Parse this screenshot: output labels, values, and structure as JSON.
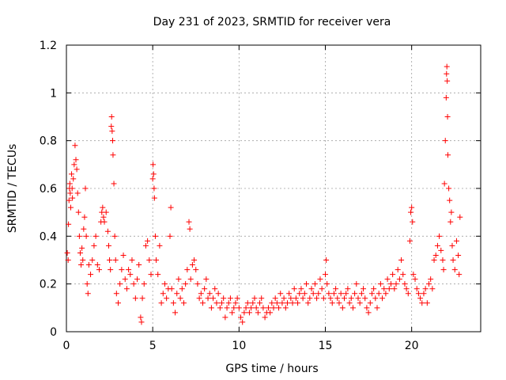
{
  "chart_data": {
    "type": "scatter",
    "title": "Day 231 of 2023, SRMTID for receiver vera",
    "xlabel": "GPS time / hours",
    "ylabel": "SRMTID / TECUs",
    "xlim": [
      0,
      24
    ],
    "ylim": [
      0,
      1.2
    ],
    "xticks": [
      0,
      5,
      10,
      15,
      20
    ],
    "yticks": [
      0,
      0.2,
      0.4,
      0.6,
      0.8,
      1,
      1.2
    ],
    "xtick_labels": [
      "0",
      "5",
      "10",
      "15",
      "20"
    ],
    "ytick_labels": [
      "0",
      "0.2",
      "0.4",
      "0.6",
      "0.8",
      "1",
      "1.2"
    ],
    "grid": true,
    "marker": "+",
    "series": [
      {
        "name": "SRMTID",
        "color": "#ff0000",
        "points": [
          [
            0.05,
            0.33
          ],
          [
            0.1,
            0.3
          ],
          [
            0.12,
            0.45
          ],
          [
            0.15,
            0.55
          ],
          [
            0.18,
            0.6
          ],
          [
            0.2,
            0.62
          ],
          [
            0.22,
            0.58
          ],
          [
            0.25,
            0.52
          ],
          [
            0.3,
            0.66
          ],
          [
            0.33,
            0.6
          ],
          [
            0.35,
            0.56
          ],
          [
            0.4,
            0.64
          ],
          [
            0.45,
            0.7
          ],
          [
            0.5,
            0.78
          ],
          [
            0.55,
            0.72
          ],
          [
            0.6,
            0.68
          ],
          [
            0.65,
            0.58
          ],
          [
            0.7,
            0.5
          ],
          [
            0.75,
            0.4
          ],
          [
            0.8,
            0.33
          ],
          [
            0.85,
            0.28
          ],
          [
            0.9,
            0.35
          ],
          [
            0.95,
            0.3
          ],
          [
            1.0,
            0.43
          ],
          [
            1.05,
            0.48
          ],
          [
            1.1,
            0.6
          ],
          [
            1.15,
            0.4
          ],
          [
            1.2,
            0.2
          ],
          [
            1.25,
            0.16
          ],
          [
            1.3,
            0.28
          ],
          [
            1.4,
            0.24
          ],
          [
            1.5,
            0.3
          ],
          [
            1.6,
            0.36
          ],
          [
            1.7,
            0.4
          ],
          [
            1.8,
            0.28
          ],
          [
            1.9,
            0.26
          ],
          [
            2.0,
            0.46
          ],
          [
            2.05,
            0.5
          ],
          [
            2.1,
            0.52
          ],
          [
            2.15,
            0.48
          ],
          [
            2.2,
            0.46
          ],
          [
            2.3,
            0.5
          ],
          [
            2.4,
            0.42
          ],
          [
            2.45,
            0.36
          ],
          [
            2.5,
            0.3
          ],
          [
            2.55,
            0.26
          ],
          [
            2.6,
            0.86
          ],
          [
            2.62,
            0.9
          ],
          [
            2.65,
            0.84
          ],
          [
            2.68,
            0.8
          ],
          [
            2.7,
            0.74
          ],
          [
            2.75,
            0.62
          ],
          [
            2.8,
            0.4
          ],
          [
            2.85,
            0.3
          ],
          [
            2.9,
            0.16
          ],
          [
            3.0,
            0.12
          ],
          [
            3.1,
            0.2
          ],
          [
            3.2,
            0.26
          ],
          [
            3.3,
            0.32
          ],
          [
            3.4,
            0.22
          ],
          [
            3.5,
            0.18
          ],
          [
            3.6,
            0.26
          ],
          [
            3.7,
            0.24
          ],
          [
            3.8,
            0.3
          ],
          [
            3.9,
            0.2
          ],
          [
            4.0,
            0.14
          ],
          [
            4.1,
            0.22
          ],
          [
            4.2,
            0.28
          ],
          [
            4.3,
            0.06
          ],
          [
            4.35,
            0.04
          ],
          [
            4.4,
            0.14
          ],
          [
            4.5,
            0.2
          ],
          [
            4.6,
            0.36
          ],
          [
            4.7,
            0.38
          ],
          [
            4.8,
            0.3
          ],
          [
            4.9,
            0.24
          ],
          [
            5.0,
            0.64
          ],
          [
            5.02,
            0.7
          ],
          [
            5.05,
            0.66
          ],
          [
            5.08,
            0.6
          ],
          [
            5.1,
            0.56
          ],
          [
            5.15,
            0.4
          ],
          [
            5.2,
            0.3
          ],
          [
            5.3,
            0.24
          ],
          [
            5.4,
            0.36
          ],
          [
            5.5,
            0.12
          ],
          [
            5.6,
            0.16
          ],
          [
            5.7,
            0.2
          ],
          [
            5.8,
            0.14
          ],
          [
            5.9,
            0.18
          ],
          [
            6.0,
            0.4
          ],
          [
            6.05,
            0.52
          ],
          [
            6.1,
            0.18
          ],
          [
            6.2,
            0.12
          ],
          [
            6.3,
            0.08
          ],
          [
            6.4,
            0.16
          ],
          [
            6.5,
            0.22
          ],
          [
            6.6,
            0.14
          ],
          [
            6.7,
            0.18
          ],
          [
            6.8,
            0.12
          ],
          [
            6.9,
            0.2
          ],
          [
            7.0,
            0.26
          ],
          [
            7.1,
            0.46
          ],
          [
            7.15,
            0.43
          ],
          [
            7.2,
            0.22
          ],
          [
            7.3,
            0.28
          ],
          [
            7.4,
            0.3
          ],
          [
            7.5,
            0.26
          ],
          [
            7.6,
            0.2
          ],
          [
            7.7,
            0.14
          ],
          [
            7.8,
            0.16
          ],
          [
            7.9,
            0.12
          ],
          [
            8.0,
            0.18
          ],
          [
            8.1,
            0.22
          ],
          [
            8.2,
            0.14
          ],
          [
            8.3,
            0.16
          ],
          [
            8.4,
            0.1
          ],
          [
            8.5,
            0.14
          ],
          [
            8.6,
            0.18
          ],
          [
            8.7,
            0.12
          ],
          [
            8.8,
            0.16
          ],
          [
            8.9,
            0.1
          ],
          [
            9.0,
            0.12
          ],
          [
            9.1,
            0.14
          ],
          [
            9.2,
            0.06
          ],
          [
            9.3,
            0.1
          ],
          [
            9.4,
            0.12
          ],
          [
            9.5,
            0.14
          ],
          [
            9.6,
            0.08
          ],
          [
            9.7,
            0.1
          ],
          [
            9.8,
            0.12
          ],
          [
            9.9,
            0.14
          ],
          [
            10.0,
            0.1
          ],
          [
            10.1,
            0.06
          ],
          [
            10.2,
            0.04
          ],
          [
            10.3,
            0.08
          ],
          [
            10.4,
            0.1
          ],
          [
            10.5,
            0.12
          ],
          [
            10.6,
            0.08
          ],
          [
            10.7,
            0.1
          ],
          [
            10.8,
            0.12
          ],
          [
            10.9,
            0.14
          ],
          [
            11.0,
            0.1
          ],
          [
            11.1,
            0.08
          ],
          [
            11.2,
            0.12
          ],
          [
            11.3,
            0.14
          ],
          [
            11.4,
            0.1
          ],
          [
            11.5,
            0.06
          ],
          [
            11.6,
            0.08
          ],
          [
            11.7,
            0.1
          ],
          [
            11.8,
            0.08
          ],
          [
            11.9,
            0.12
          ],
          [
            12.0,
            0.1
          ],
          [
            12.1,
            0.14
          ],
          [
            12.2,
            0.12
          ],
          [
            12.3,
            0.1
          ],
          [
            12.4,
            0.16
          ],
          [
            12.5,
            0.12
          ],
          [
            12.6,
            0.14
          ],
          [
            12.7,
            0.1
          ],
          [
            12.8,
            0.12
          ],
          [
            12.9,
            0.16
          ],
          [
            13.0,
            0.14
          ],
          [
            13.1,
            0.12
          ],
          [
            13.2,
            0.18
          ],
          [
            13.3,
            0.14
          ],
          [
            13.4,
            0.12
          ],
          [
            13.5,
            0.16
          ],
          [
            13.6,
            0.18
          ],
          [
            13.7,
            0.14
          ],
          [
            13.8,
            0.16
          ],
          [
            13.9,
            0.2
          ],
          [
            14.0,
            0.12
          ],
          [
            14.1,
            0.14
          ],
          [
            14.2,
            0.18
          ],
          [
            14.3,
            0.16
          ],
          [
            14.4,
            0.2
          ],
          [
            14.5,
            0.14
          ],
          [
            14.6,
            0.16
          ],
          [
            14.7,
            0.22
          ],
          [
            14.8,
            0.18
          ],
          [
            14.9,
            0.14
          ],
          [
            15.0,
            0.24
          ],
          [
            15.05,
            0.3
          ],
          [
            15.1,
            0.2
          ],
          [
            15.2,
            0.16
          ],
          [
            15.3,
            0.14
          ],
          [
            15.4,
            0.12
          ],
          [
            15.5,
            0.16
          ],
          [
            15.6,
            0.18
          ],
          [
            15.7,
            0.14
          ],
          [
            15.8,
            0.12
          ],
          [
            15.9,
            0.16
          ],
          [
            16.0,
            0.1
          ],
          [
            16.1,
            0.14
          ],
          [
            16.2,
            0.16
          ],
          [
            16.3,
            0.18
          ],
          [
            16.4,
            0.12
          ],
          [
            16.5,
            0.14
          ],
          [
            16.6,
            0.1
          ],
          [
            16.7,
            0.16
          ],
          [
            16.8,
            0.2
          ],
          [
            16.9,
            0.14
          ],
          [
            17.0,
            0.12
          ],
          [
            17.1,
            0.16
          ],
          [
            17.2,
            0.18
          ],
          [
            17.3,
            0.14
          ],
          [
            17.4,
            0.1
          ],
          [
            17.5,
            0.08
          ],
          [
            17.6,
            0.12
          ],
          [
            17.7,
            0.16
          ],
          [
            17.8,
            0.18
          ],
          [
            17.9,
            0.14
          ],
          [
            18.0,
            0.1
          ],
          [
            18.1,
            0.16
          ],
          [
            18.2,
            0.2
          ],
          [
            18.3,
            0.14
          ],
          [
            18.4,
            0.18
          ],
          [
            18.5,
            0.16
          ],
          [
            18.6,
            0.22
          ],
          [
            18.7,
            0.18
          ],
          [
            18.8,
            0.2
          ],
          [
            18.9,
            0.24
          ],
          [
            19.0,
            0.18
          ],
          [
            19.1,
            0.2
          ],
          [
            19.2,
            0.26
          ],
          [
            19.3,
            0.22
          ],
          [
            19.4,
            0.3
          ],
          [
            19.5,
            0.24
          ],
          [
            19.6,
            0.2
          ],
          [
            19.7,
            0.18
          ],
          [
            19.8,
            0.16
          ],
          [
            19.9,
            0.38
          ],
          [
            19.95,
            0.5
          ],
          [
            20.0,
            0.52
          ],
          [
            20.05,
            0.46
          ],
          [
            20.1,
            0.24
          ],
          [
            20.2,
            0.22
          ],
          [
            20.3,
            0.18
          ],
          [
            20.4,
            0.16
          ],
          [
            20.5,
            0.14
          ],
          [
            20.6,
            0.12
          ],
          [
            20.7,
            0.16
          ],
          [
            20.8,
            0.18
          ],
          [
            20.9,
            0.12
          ],
          [
            21.0,
            0.2
          ],
          [
            21.1,
            0.22
          ],
          [
            21.2,
            0.18
          ],
          [
            21.3,
            0.3
          ],
          [
            21.4,
            0.32
          ],
          [
            21.5,
            0.36
          ],
          [
            21.6,
            0.4
          ],
          [
            21.7,
            0.34
          ],
          [
            21.8,
            0.3
          ],
          [
            21.85,
            0.26
          ],
          [
            21.9,
            0.62
          ],
          [
            21.95,
            0.8
          ],
          [
            22.0,
            0.98
          ],
          [
            22.02,
            1.08
          ],
          [
            22.04,
            1.11
          ],
          [
            22.06,
            1.05
          ],
          [
            22.08,
            0.9
          ],
          [
            22.1,
            0.74
          ],
          [
            22.15,
            0.6
          ],
          [
            22.2,
            0.55
          ],
          [
            22.25,
            0.46
          ],
          [
            22.3,
            0.5
          ],
          [
            22.35,
            0.36
          ],
          [
            22.4,
            0.3
          ],
          [
            22.5,
            0.26
          ],
          [
            22.6,
            0.38
          ],
          [
            22.7,
            0.32
          ],
          [
            22.75,
            0.24
          ],
          [
            22.8,
            0.48
          ]
        ]
      }
    ]
  }
}
